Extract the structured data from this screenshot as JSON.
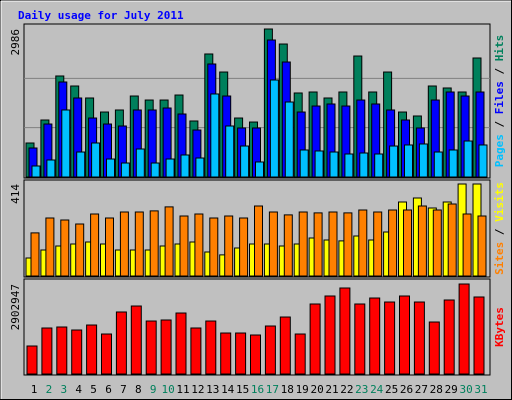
{
  "title": "Daily usage for July 2011",
  "legend_separator": " / ",
  "chart_data": [
    {
      "type": "bar",
      "series": [
        {
          "name": "Hits",
          "color": "#00805c",
          "values": [
            686,
            1150,
            2038,
            1836,
            1594,
            1311,
            1352,
            1634,
            1553,
            1553,
            1654,
            1130,
            2482,
            2118,
            1190,
            1109,
            2986,
            2683,
            1695,
            1715,
            1594,
            1715,
            2441,
            1715,
            2118,
            1311,
            1231,
            1836,
            1796,
            1715,
            2401
          ]
        },
        {
          "name": "Files",
          "color": "#0000ff",
          "values": [
            585,
            1069,
            1917,
            1594,
            1190,
            1069,
            1029,
            1352,
            1352,
            1392,
            1271,
            948,
            2280,
            1634,
            989,
            989,
            2764,
            2320,
            1311,
            1432,
            1473,
            1432,
            1553,
            1473,
            1352,
            1150,
            989,
            1553,
            1715,
            1634,
            1715
          ]
        },
        {
          "name": "Pages",
          "color": "#00c0ff",
          "values": [
            222,
            343,
            1352,
            504,
            686,
            363,
            282,
            565,
            282,
            363,
            444,
            383,
            1675,
            1029,
            625,
            303,
            1957,
            1513,
            545,
            525,
            504,
            464,
            484,
            464,
            625,
            646,
            666,
            504,
            545,
            726,
            646
          ]
        }
      ],
      "ylim": [
        0,
        2986
      ],
      "yticks": [
        2986
      ],
      "grid_divisions": 3
    },
    {
      "type": "bar",
      "series": [
        {
          "name": "Visits",
          "color": "#ffff00",
          "values": [
            81,
            117,
            135,
            144,
            153,
            144,
            117,
            117,
            117,
            135,
            144,
            153,
            108,
            95,
            126,
            144,
            144,
            135,
            144,
            171,
            162,
            158,
            180,
            162,
            198,
            333,
            351,
            306,
            333,
            414,
            414
          ]
        },
        {
          "name": "Sites",
          "color": "#ff8000",
          "values": [
            194,
            261,
            252,
            234,
            279,
            261,
            288,
            288,
            293,
            311,
            270,
            279,
            261,
            270,
            261,
            315,
            288,
            275,
            288,
            284,
            288,
            284,
            297,
            288,
            297,
            297,
            315,
            297,
            324,
            279,
            270
          ]
        }
      ],
      "ylim": [
        0,
        414
      ],
      "yticks": [
        414
      ]
    },
    {
      "type": "bar",
      "series": [
        {
          "name": "KBytes",
          "color": "#ff0000",
          "values": [
            903139,
            1483728,
            1516000,
            1419000,
            1580000,
            1290000,
            2000000,
            2193000,
            1709000,
            1742000,
            1967000,
            1484000,
            1709000,
            1322000,
            1322000,
            1258000,
            1548000,
            1838000,
            1290000,
            2258000,
            2516000,
            2774000,
            2258000,
            2451000,
            2322000,
            2516000,
            2322000,
            1677000,
            2387000,
            2902947,
            2484000
          ]
        }
      ],
      "ylim": [
        0,
        2902947
      ],
      "yticks": [
        2902947
      ],
      "categories": [
        "1",
        "2",
        "3",
        "4",
        "5",
        "6",
        "7",
        "8",
        "9",
        "10",
        "11",
        "12",
        "13",
        "14",
        "15",
        "16",
        "17",
        "18",
        "19",
        "20",
        "21",
        "22",
        "23",
        "24",
        "25",
        "26",
        "27",
        "28",
        "29",
        "30",
        "31"
      ],
      "category_colors": [
        "#000000",
        "#00805c",
        "#00805c",
        "#000000",
        "#000000",
        "#000000",
        "#000000",
        "#000000",
        "#00805c",
        "#00805c",
        "#000000",
        "#000000",
        "#000000",
        "#000000",
        "#000000",
        "#00805c",
        "#00805c",
        "#000000",
        "#000000",
        "#000000",
        "#000000",
        "#000000",
        "#00805c",
        "#00805c",
        "#000000",
        "#000000",
        "#000000",
        "#000000",
        "#000000",
        "#00805c",
        "#00805c"
      ]
    }
  ]
}
